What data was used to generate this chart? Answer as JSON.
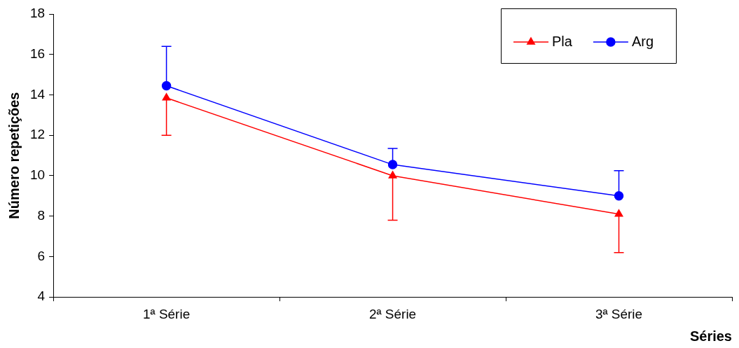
{
  "chart_data": {
    "type": "line",
    "xlabel": "Séries",
    "ylabel": "Número repetições",
    "categories": [
      "1ª Série",
      "2ª Série",
      "3ª Série"
    ],
    "series": [
      {
        "name": "Pla",
        "color": "#ff0000",
        "marker": "triangle",
        "values": [
          13.85,
          10.0,
          8.1
        ],
        "errors": [
          [
            12.0,
            13.85
          ],
          [
            7.8,
            10.0
          ],
          [
            6.2,
            8.1
          ]
        ]
      },
      {
        "name": "Arg",
        "color": "#0000ff",
        "marker": "circle",
        "values": [
          14.45,
          10.55,
          9.0
        ],
        "errors": [
          [
            14.45,
            16.4
          ],
          [
            10.55,
            11.35
          ],
          [
            9.0,
            10.25
          ]
        ]
      }
    ],
    "ylim": [
      4,
      18
    ],
    "yticks": [
      4,
      6,
      8,
      10,
      12,
      14,
      16,
      18
    ],
    "grid": false,
    "legend": "top right"
  }
}
